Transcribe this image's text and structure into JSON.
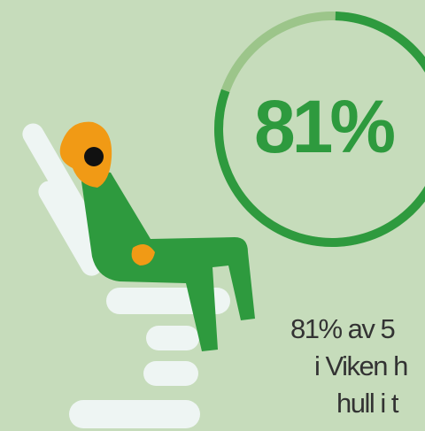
{
  "gauge": {
    "value": 81,
    "label": "81%"
  },
  "caption": [
    "81% av 5",
    "i Viken h",
    "hull i t"
  ]
}
